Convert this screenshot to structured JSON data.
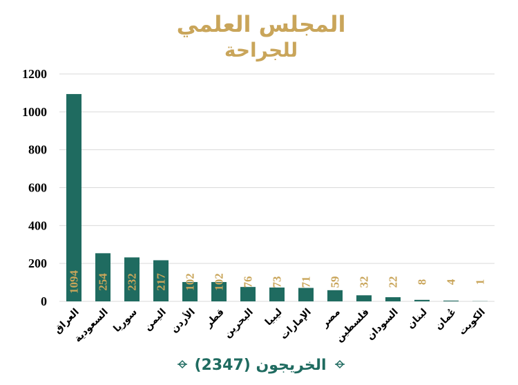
{
  "colors": {
    "title": "#c9a55a",
    "bar": "#1f6b60",
    "label_gold": "#c9a55a",
    "footer": "#1f6b60",
    "grid": "#d9d9d9"
  },
  "footer": {
    "text": "الخريجون (2347)"
  },
  "chart_data": {
    "type": "bar",
    "title": "المجلس العلمي",
    "subtitle": "للجراحة",
    "ylim": [
      0,
      1200
    ],
    "yticks": [
      0,
      200,
      400,
      600,
      800,
      1000,
      1200
    ],
    "grid": true,
    "categories": [
      "العراق",
      "السعودية",
      "سوريا",
      "اليمن",
      "الأردن",
      "قطر",
      "البحرين",
      "ليبيا",
      "الإمارات",
      "مصر",
      "فلسطين",
      "السودان",
      "لبنان",
      "عُمان",
      "الكويت"
    ],
    "values": [
      1094,
      254,
      232,
      217,
      102,
      102,
      76,
      73,
      71,
      59,
      32,
      22,
      8,
      4,
      1
    ]
  }
}
